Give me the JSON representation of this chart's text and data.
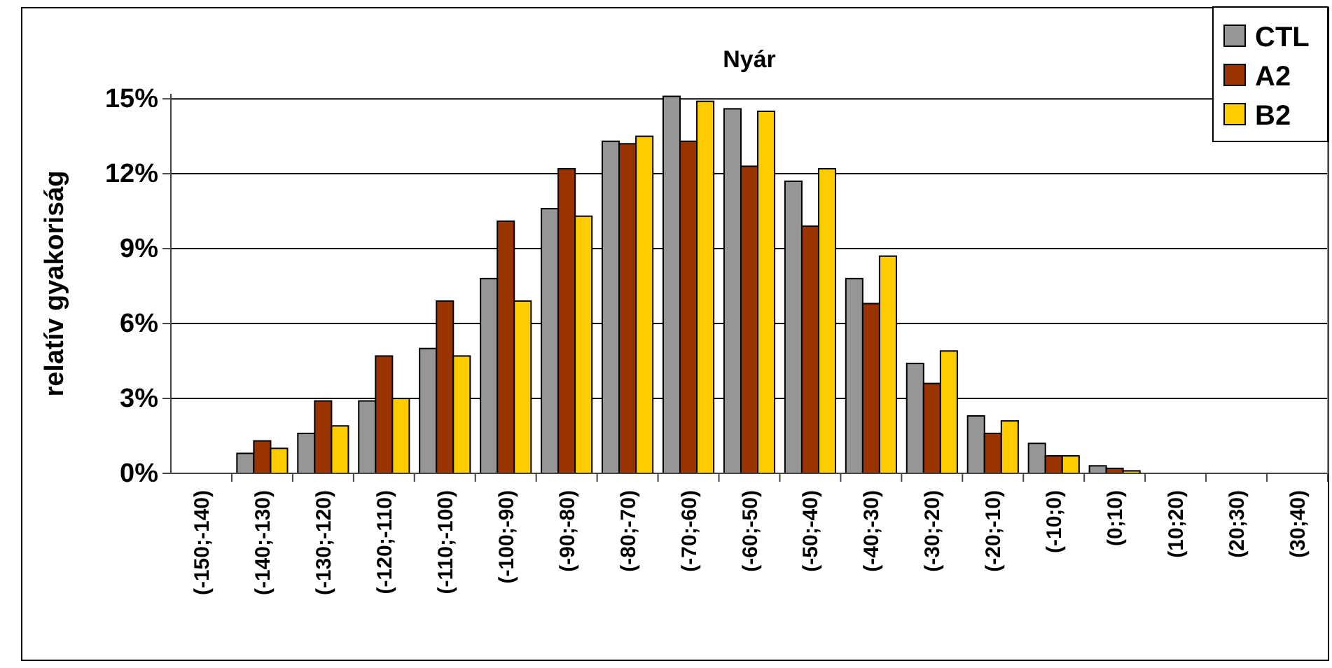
{
  "chart_data": {
    "type": "bar",
    "title": "Nyár",
    "ylabel": "relatív gyakoriság",
    "categories": [
      "(-150;-140)",
      "(-140;-130)",
      "(-130;-120)",
      "(-120;-110)",
      "(-110;-100)",
      "(-100;-90)",
      "(-90;-80)",
      "(-80;-70)",
      "(-70;-60)",
      "(-60;-50)",
      "(-50;-40)",
      "(-40;-30)",
      "(-30;-20)",
      "(-20;-10)",
      "(-10;0)",
      "(0;10)",
      "(10;20)",
      "(20;30)",
      "(30;40)"
    ],
    "series": [
      {
        "name": "CTL",
        "color": "#969696",
        "values": [
          0,
          0.8,
          1.6,
          2.9,
          5.0,
          7.8,
          10.6,
          13.3,
          15.1,
          14.6,
          11.7,
          7.8,
          4.4,
          2.3,
          1.2,
          0.3,
          0,
          0,
          0
        ]
      },
      {
        "name": "A2",
        "color": "#993300",
        "values": [
          0,
          1.3,
          2.9,
          4.7,
          6.9,
          10.1,
          12.2,
          13.2,
          13.3,
          12.3,
          9.9,
          6.8,
          3.6,
          1.6,
          0.7,
          0.2,
          0,
          0,
          0
        ]
      },
      {
        "name": "B2",
        "color": "#ffcc00",
        "values": [
          0,
          1.0,
          1.9,
          3.0,
          4.7,
          6.9,
          10.3,
          13.5,
          14.9,
          14.5,
          12.2,
          8.7,
          4.9,
          2.1,
          0.7,
          0.1,
          0,
          0,
          0
        ]
      }
    ],
    "ylim": [
      0,
      15.2
    ],
    "yticks": [
      {
        "value": 0,
        "label": "0%"
      },
      {
        "value": 3,
        "label": "3%"
      },
      {
        "value": 6,
        "label": "6%"
      },
      {
        "value": 9,
        "label": "9%"
      },
      {
        "value": 12,
        "label": "12%"
      },
      {
        "value": 15,
        "label": "15%"
      }
    ],
    "grid": "y",
    "legend": "top right"
  }
}
